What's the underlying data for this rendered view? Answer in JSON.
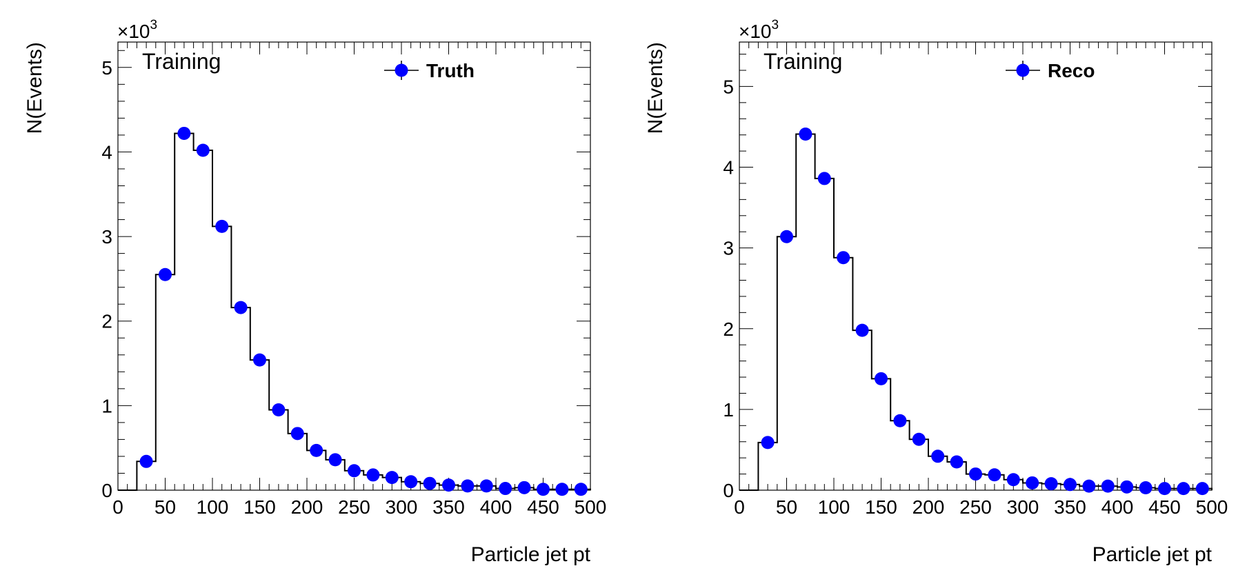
{
  "chart_data": [
    {
      "type": "histogram",
      "panel_label": "Training",
      "exponent_label": "×10",
      "exponent_power": "3",
      "xlabel": "Particle jet pt",
      "ylabel": "N(Events)",
      "xlim": [
        0,
        500
      ],
      "ylim": [
        0,
        5.3
      ],
      "y_scale_factor": 1000,
      "xticks": [
        "0",
        "50",
        "100",
        "150",
        "200",
        "250",
        "300",
        "350",
        "400",
        "450",
        "500"
      ],
      "yticks": [
        "0",
        "1",
        "2",
        "3",
        "4",
        "5"
      ],
      "legend": {
        "label": "Truth",
        "position": "top-right",
        "marker_color": "#0000ff"
      },
      "bin_edges": [
        0,
        20,
        40,
        60,
        80,
        100,
        120,
        140,
        160,
        180,
        200,
        220,
        240,
        260,
        280,
        300,
        320,
        340,
        360,
        380,
        400,
        420,
        440,
        460,
        480,
        500
      ],
      "series": [
        {
          "name": "Truth",
          "values": [
            0,
            0.34,
            2.55,
            4.22,
            4.02,
            3.12,
            2.16,
            1.54,
            0.95,
            0.67,
            0.47,
            0.36,
            0.23,
            0.18,
            0.15,
            0.1,
            0.08,
            0.06,
            0.05,
            0.05,
            0.02,
            0.03,
            0.01,
            0.01,
            0.01
          ]
        }
      ]
    },
    {
      "type": "histogram",
      "panel_label": "Training",
      "exponent_label": "×10",
      "exponent_power": "3",
      "xlabel": "Particle jet pt",
      "ylabel": "N(Events)",
      "xlim": [
        0,
        500
      ],
      "ylim": [
        0,
        5.55
      ],
      "y_scale_factor": 1000,
      "xticks": [
        "0",
        "50",
        "100",
        "150",
        "200",
        "250",
        "300",
        "350",
        "400",
        "450",
        "500"
      ],
      "yticks": [
        "0",
        "1",
        "2",
        "3",
        "4",
        "5"
      ],
      "legend": {
        "label": "Reco",
        "position": "top-right",
        "marker_color": "#0000ff"
      },
      "bin_edges": [
        0,
        20,
        40,
        60,
        80,
        100,
        120,
        140,
        160,
        180,
        200,
        220,
        240,
        260,
        280,
        300,
        320,
        340,
        360,
        380,
        400,
        420,
        440,
        460,
        480,
        500
      ],
      "series": [
        {
          "name": "Reco",
          "values": [
            0,
            0.59,
            3.14,
            4.41,
            3.86,
            2.88,
            1.98,
            1.38,
            0.86,
            0.63,
            0.42,
            0.35,
            0.2,
            0.19,
            0.13,
            0.09,
            0.08,
            0.07,
            0.05,
            0.05,
            0.04,
            0.03,
            0.02,
            0.02,
            0.02
          ]
        }
      ]
    }
  ]
}
